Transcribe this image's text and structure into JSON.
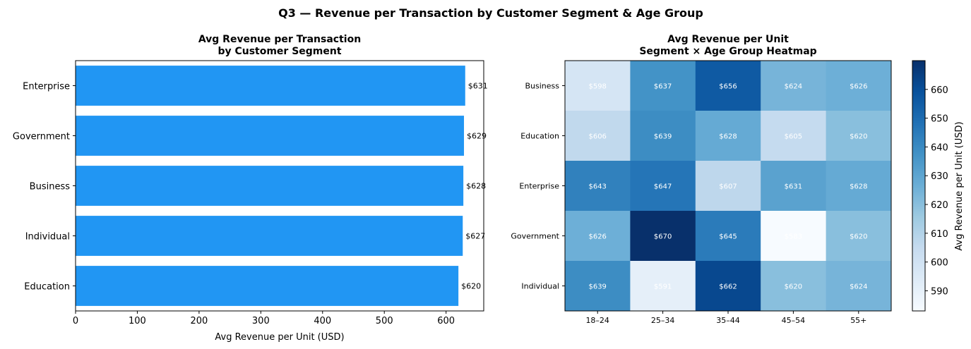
{
  "suptitle": "Q3 — Revenue per Transaction by Customer Segment & Age Group",
  "chart_data": [
    {
      "type": "bar",
      "orientation": "horizontal",
      "title": [
        "Avg Revenue per Transaction",
        "by Customer Segment"
      ],
      "xlabel": "Avg Revenue per Unit (USD)",
      "ylabel": "",
      "categories": [
        "Enterprise",
        "Government",
        "Business",
        "Individual",
        "Education"
      ],
      "values": [
        631,
        629,
        628,
        627,
        620
      ],
      "data_labels": [
        "$631",
        "$629",
        "$628",
        "$627",
        "$620"
      ],
      "xlim": [
        0,
        661
      ],
      "xticks": [
        0,
        100,
        200,
        300,
        400,
        500,
        600
      ],
      "color": "#2196F3",
      "grid": false
    },
    {
      "type": "heatmap",
      "title": [
        "Avg Revenue per Unit",
        "Segment × Age Group Heatmap"
      ],
      "rows": [
        "Business",
        "Education",
        "Enterprise",
        "Government",
        "Individual"
      ],
      "columns": [
        "18–24",
        "25–34",
        "35–44",
        "45–54",
        "55+"
      ],
      "values": [
        [
          598,
          637,
          656,
          624,
          626
        ],
        [
          606,
          639,
          628,
          605,
          620
        ],
        [
          643,
          647,
          607,
          631,
          628
        ],
        [
          626,
          670,
          645,
          583,
          620
        ],
        [
          639,
          591,
          662,
          620,
          624
        ]
      ],
      "colormap": "Blues",
      "colorbar": {
        "label": "Avg Revenue per Unit (USD)",
        "range": [
          583,
          670
        ],
        "ticks": [
          590,
          600,
          610,
          620,
          630,
          640,
          650,
          660
        ]
      },
      "annotation_color": "#ffffff"
    }
  ]
}
